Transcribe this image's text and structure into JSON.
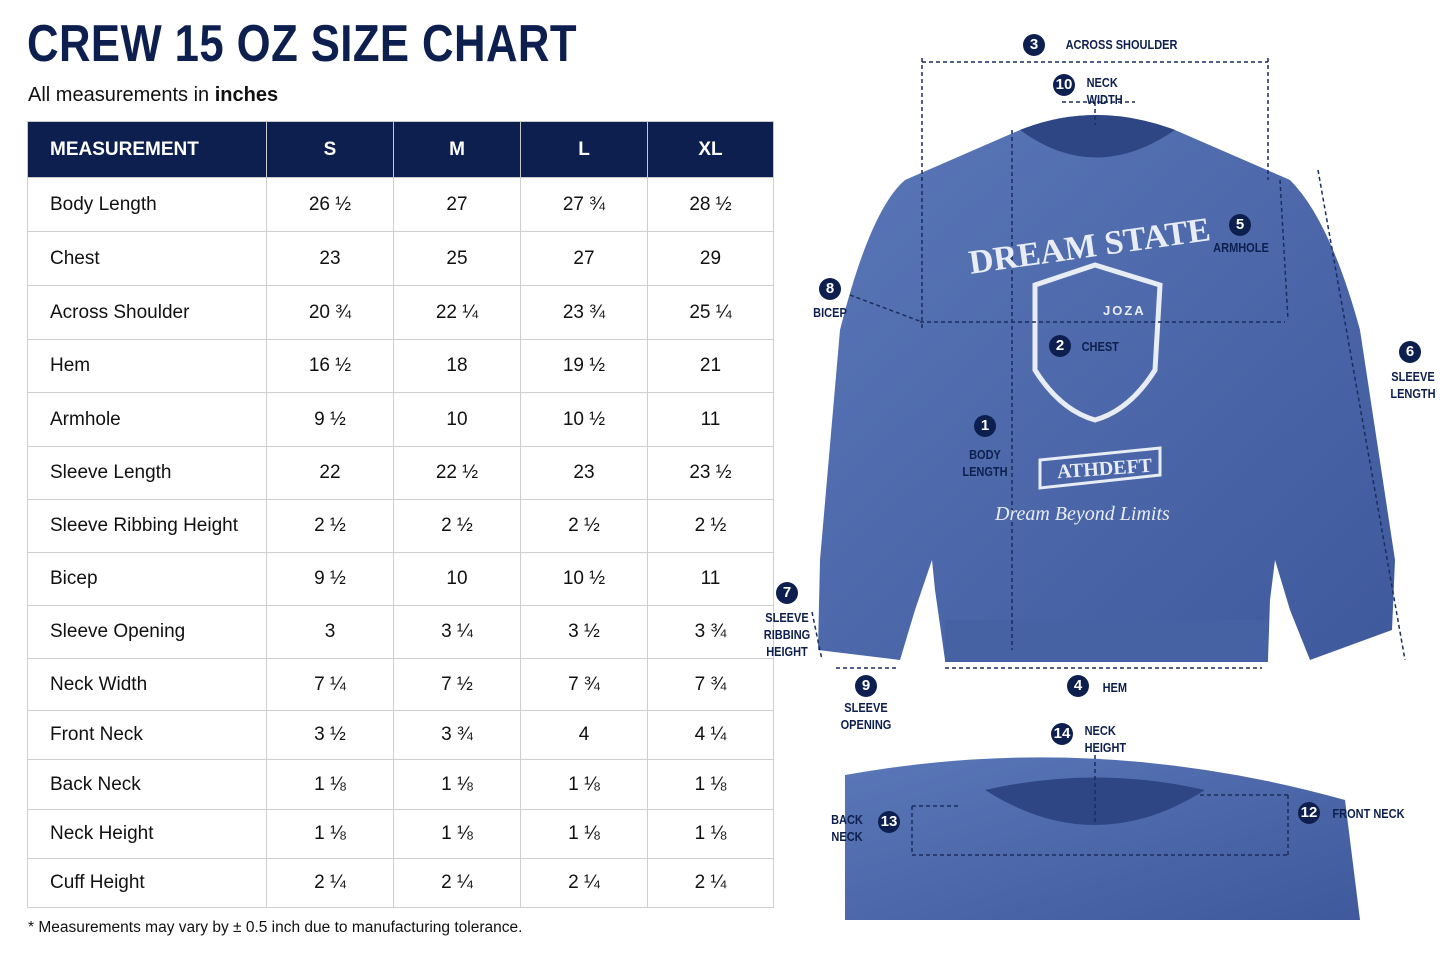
{
  "header": {
    "title": "CREW 15 OZ SIZE CHART",
    "subtitle": {
      "text": "All measurements in",
      "unit": "inches"
    }
  },
  "table": {
    "columns": [
      "MEASUREMENT",
      "S",
      "M",
      "L",
      "XL"
    ],
    "rows": [
      [
        "Body Length",
        "26 ½",
        "27",
        "27 ¾",
        "28 ½"
      ],
      [
        "Chest",
        "23",
        "25",
        "27",
        "29"
      ],
      [
        "Across Shoulder",
        "20 ¾",
        "22 ¼",
        "23 ¾",
        "25 ¼"
      ],
      [
        "Hem",
        "16 ½",
        "18",
        "19 ½",
        "21"
      ],
      [
        "Armhole",
        "9 ½",
        "10",
        "10 ½",
        "11"
      ],
      [
        "Sleeve Length",
        "22",
        "22 ½",
        "23",
        "23 ½"
      ],
      [
        "Sleeve Ribbing Height",
        "2 ½",
        "2 ½",
        "2 ½",
        "2 ½"
      ],
      [
        "Bicep",
        "9 ½",
        "10",
        "10 ½",
        "11"
      ],
      [
        "Sleeve Opening",
        "3",
        "3 ¼",
        "3 ½",
        "3 ¾"
      ],
      [
        "Neck Width",
        "7 ¼",
        "7 ½",
        "7 ¾",
        "7 ¾"
      ],
      [
        "Front Neck",
        "3 ½",
        "3 ¾",
        "4",
        "4 ¼"
      ],
      [
        "Back Neck",
        "1 ⅛",
        "1 ⅛",
        "1 ⅛",
        "1 ⅛"
      ],
      [
        "Neck Height",
        "1 ⅛",
        "1 ⅛",
        "1 ⅛",
        "1 ⅛"
      ],
      [
        "Cuff Height",
        "2 ¼",
        "2 ¼",
        "2 ¼",
        "2 ¼"
      ]
    ]
  },
  "footnote": "* Measurements may vary by ± 0.5 inch due to manufacturing tolerance.",
  "diagram": {
    "graphic": {
      "arc_text": "DREAM STATE",
      "shield_text": "JOZA",
      "banner_text": "ATHDEFT",
      "script_text": "Dream Beyond Limits"
    },
    "callouts": [
      {
        "number": "1",
        "label": "BODY LENGTH"
      },
      {
        "number": "2",
        "label": "CHEST"
      },
      {
        "number": "3",
        "label": "ACROSS SHOULDER"
      },
      {
        "number": "4",
        "label": "HEM"
      },
      {
        "number": "5",
        "label": "ARMHOLE"
      },
      {
        "number": "6",
        "label": "SLEEVE LENGTH"
      },
      {
        "number": "7",
        "label": "SLEEVE RIBBING HEIGHT"
      },
      {
        "number": "8",
        "label": "BICEP"
      },
      {
        "number": "9",
        "label": "SLEEVE OPENING"
      },
      {
        "number": "10",
        "label": "NECK WIDTH"
      },
      {
        "number": "12",
        "label": "FRONT NECK"
      },
      {
        "number": "13",
        "label": "BACK NECK"
      },
      {
        "number": "14",
        "label": "NECK HEIGHT"
      }
    ]
  }
}
